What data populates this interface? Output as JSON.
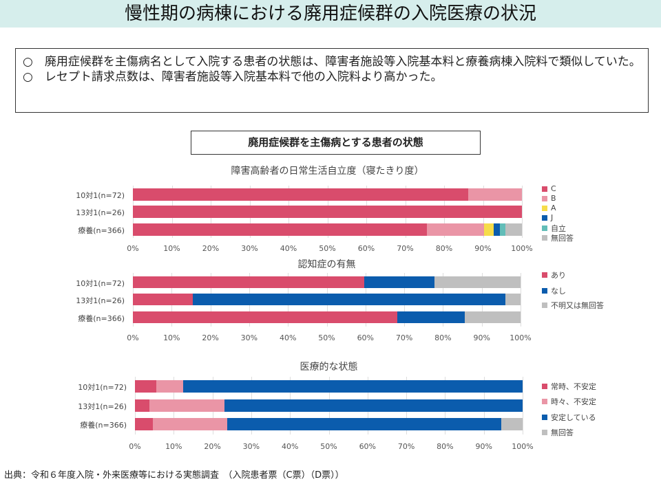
{
  "header": {
    "title": "慢性期の病棟における廃用症候群の入院医療の状況"
  },
  "summary": [
    "○　廃用症候群を主傷病名として入院する患者の状態は、障害者施設等入院基本料と療養病棟入院料で類似していた。",
    "○　レセプト請求点数は、障害者施設等入院基本料で他の入院料より高かった。"
  ],
  "subtitle": "廃用症候群を主傷病とする患者の状態",
  "footer": "出典：令和６年度入院・外来医療等における実態調査　（入院患者票（C票）（D票））",
  "chart_data": [
    {
      "type": "bar",
      "stacked": true,
      "orientation": "horizontal",
      "title": "障害高齢者の日常生活自立度（寝たきり度）",
      "categories": [
        "10対1(n=72)",
        "13対1(n=26)",
        "療養(n=366)"
      ],
      "xlim": [
        0,
        100
      ],
      "ticks": [
        "0%",
        "10%",
        "20%",
        "30%",
        "40%",
        "50%",
        "60%",
        "70%",
        "80%",
        "90%",
        "100%"
      ],
      "legend": "right",
      "series": [
        {
          "name": "C",
          "color": "#d94c6c",
          "values": [
            86.2,
            100,
            75.6
          ]
        },
        {
          "name": "B",
          "color": "#ea95a6",
          "values": [
            13.8,
            0,
            14.7
          ]
        },
        {
          "name": "A",
          "color": "#f6dc4a",
          "values": [
            0,
            0,
            2.5
          ]
        },
        {
          "name": "J",
          "color": "#0b5cad",
          "values": [
            0,
            0,
            1.6
          ]
        },
        {
          "name": "自立",
          "color": "#62bdb8",
          "values": [
            0,
            0,
            1.4
          ]
        },
        {
          "name": "無回答",
          "color": "#bfbfbf",
          "values": [
            0,
            0,
            4.2
          ]
        }
      ]
    },
    {
      "type": "bar",
      "stacked": true,
      "orientation": "horizontal",
      "title": "認知症の有無",
      "categories": [
        "10対1(n=72)",
        "13対1(n=26)",
        "療養(n=366)"
      ],
      "xlim": [
        0,
        100
      ],
      "ticks": [
        "0%",
        "10%",
        "20%",
        "30%",
        "40%",
        "50%",
        "60%",
        "70%",
        "80%",
        "90%",
        "100%"
      ],
      "legend": "right",
      "series": [
        {
          "name": "あり",
          "color": "#d94c6c",
          "values": [
            59.7,
            15.5,
            68.2
          ]
        },
        {
          "name": "なし",
          "color": "#0b5cad",
          "values": [
            18.1,
            80.6,
            17.4
          ]
        },
        {
          "name": "不明又は無回答",
          "color": "#bfbfbf",
          "values": [
            22.2,
            3.9,
            14.4
          ]
        }
      ]
    },
    {
      "type": "bar",
      "stacked": true,
      "orientation": "horizontal",
      "title": "医療的な状態",
      "categories": [
        "10対1(n=72)",
        "13対1(n=26)",
        "療養(n=366)"
      ],
      "xlim": [
        0,
        100
      ],
      "ticks": [
        "0%",
        "10%",
        "20%",
        "30%",
        "40%",
        "50%",
        "60%",
        "70%",
        "80%",
        "90%",
        "100%"
      ],
      "legend": "right",
      "series": [
        {
          "name": "常時、不安定",
          "color": "#d94c6c",
          "values": [
            5.5,
            3.7,
            4.6
          ]
        },
        {
          "name": "時々、不安定",
          "color": "#ea95a6",
          "values": [
            6.9,
            19.4,
            19.2
          ]
        },
        {
          "name": "安定している",
          "color": "#0b5cad",
          "values": [
            87.6,
            76.9,
            70.7
          ]
        },
        {
          "name": "無回答",
          "color": "#bfbfbf",
          "values": [
            0,
            0,
            5.5
          ]
        }
      ]
    }
  ]
}
